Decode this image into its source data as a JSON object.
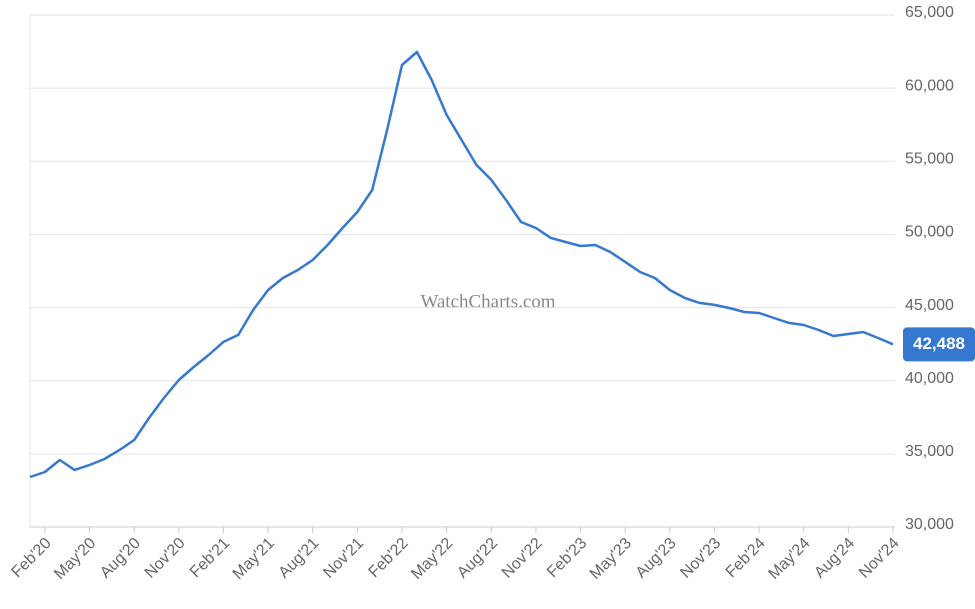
{
  "chart_data": {
    "type": "line",
    "watermark": "WatchCharts.com",
    "categories": [
      null,
      "Feb'20",
      null,
      null,
      "May'20",
      null,
      null,
      "Aug'20",
      null,
      null,
      "Nov'20",
      null,
      null,
      "Feb'21",
      null,
      null,
      "May'21",
      null,
      null,
      "Aug'21",
      null,
      null,
      "Nov'21",
      null,
      null,
      "Feb'22",
      null,
      null,
      "May'22",
      null,
      null,
      "Aug'22",
      null,
      null,
      "Nov'22",
      null,
      null,
      "Feb'23",
      null,
      null,
      "May'23",
      null,
      null,
      "Aug'23",
      null,
      null,
      "Nov'23",
      null,
      null,
      "Feb'24",
      null,
      null,
      "May'24",
      null,
      null,
      "Aug'24",
      null,
      null,
      "Nov'24"
    ],
    "series": [
      {
        "color": "#3578d0",
        "values": [
          33420,
          33760,
          34580,
          33900,
          34240,
          34650,
          35260,
          35950,
          37450,
          38820,
          40050,
          40940,
          41760,
          42650,
          43130,
          44840,
          46200,
          47020,
          47570,
          48250,
          49280,
          50440,
          51530,
          53040,
          57140,
          61580,
          62470,
          60560,
          58170,
          56460,
          54750,
          53730,
          52350,
          50850,
          50440,
          49760,
          49480,
          49210,
          49280,
          48800,
          48120,
          47430,
          47020,
          46200,
          45660,
          45320,
          45180,
          44970,
          44700,
          44630,
          44290,
          43950,
          43810,
          43470,
          43060,
          43190,
          43330,
          42920,
          42488
        ],
        "value_labels": [
          null,
          null,
          null,
          null,
          null,
          null,
          null,
          null,
          null,
          null,
          null,
          null,
          null,
          null,
          null,
          null,
          null,
          null,
          null,
          null,
          null,
          null,
          null,
          null,
          null,
          null,
          null,
          null,
          null,
          null,
          null,
          null,
          null,
          null,
          null,
          null,
          null,
          null,
          null,
          null,
          null,
          null,
          null,
          null,
          null,
          null,
          null,
          null,
          null,
          null,
          null,
          null,
          null,
          null,
          null,
          null,
          null,
          null,
          "42,488"
        ]
      }
    ],
    "ylim": [
      30000,
      65000
    ],
    "yticks": [
      {
        "value": 30000,
        "label": "30,000"
      },
      {
        "value": 35000,
        "label": "35,000"
      },
      {
        "value": 40000,
        "label": "40,000"
      },
      {
        "value": 45000,
        "label": "45,000"
      },
      {
        "value": 50000,
        "label": "50,000"
      },
      {
        "value": 55000,
        "label": "55,000"
      },
      {
        "value": 60000,
        "label": "60,000"
      },
      {
        "value": 65000,
        "label": "65,000"
      }
    ],
    "grid": true
  }
}
